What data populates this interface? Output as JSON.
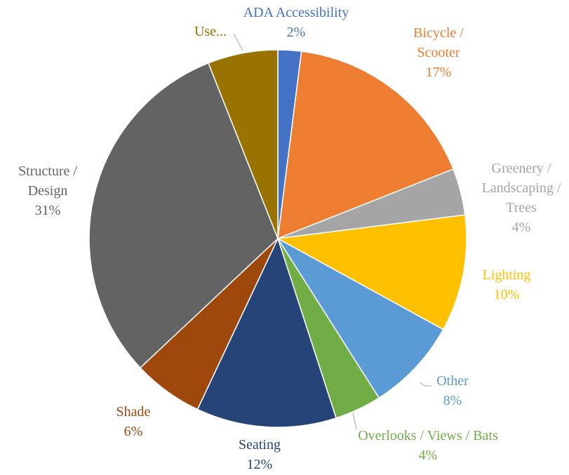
{
  "chart_data": {
    "type": "pie",
    "categories": [
      "ADA Accessibility",
      "Bicycle / Scooter",
      "Greenery / Landscaping / Trees",
      "Lighting",
      "Other",
      "Overlooks / Views / Bats",
      "Seating",
      "Shade",
      "Structure / Design",
      "Use..."
    ],
    "values": [
      2,
      17,
      4,
      10,
      8,
      4,
      12,
      6,
      31,
      6
    ],
    "value_labels": [
      "2%",
      "17%",
      "4%",
      "10%",
      "8%",
      "4%",
      "12%",
      "6%",
      "31%",
      null
    ],
    "colors": [
      "#4472c4",
      "#ed7d31",
      "#a5a5a5",
      "#ffc000",
      "#5b9bd5",
      "#70ad47",
      "#264478",
      "#9e480e",
      "#636363",
      "#997300"
    ]
  }
}
